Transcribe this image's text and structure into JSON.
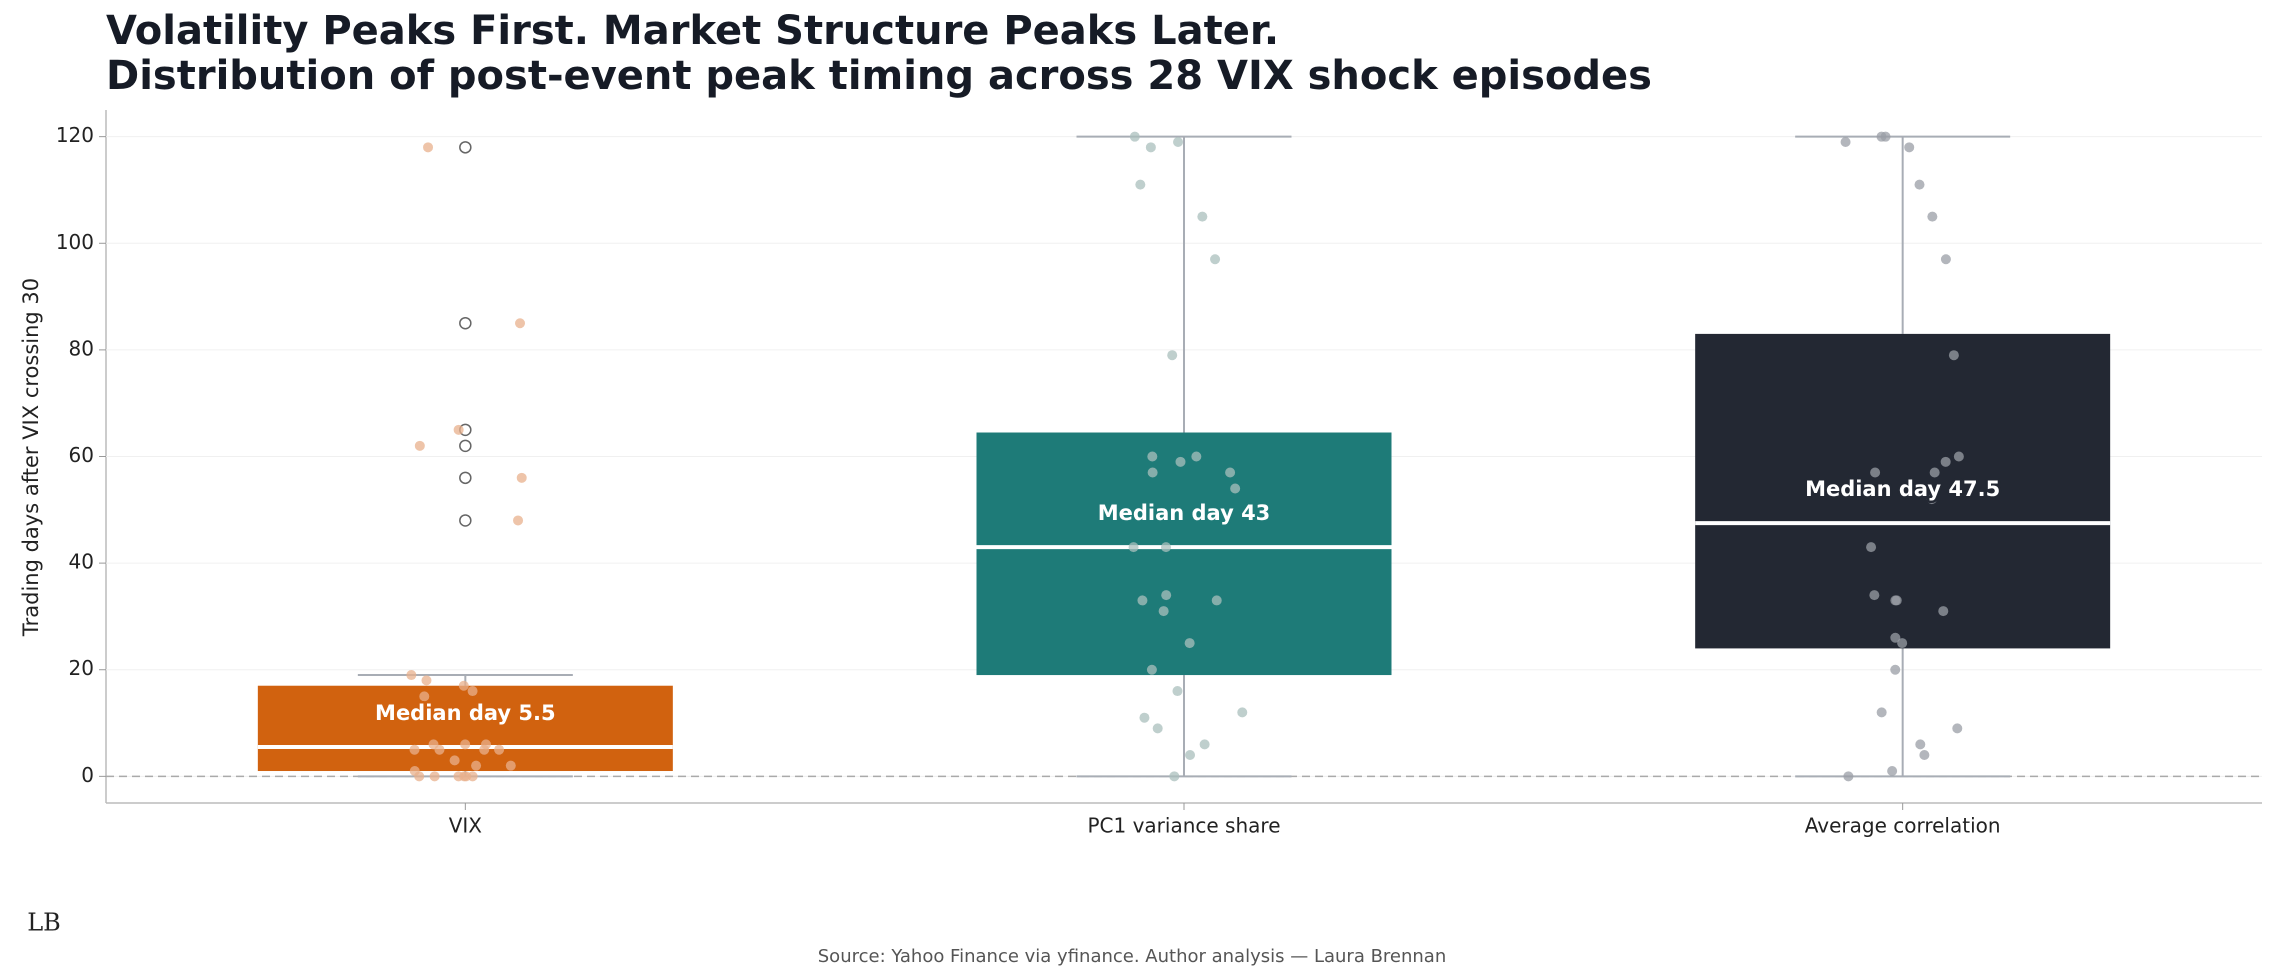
{
  "chart_data": {
    "type": "box",
    "title": "Volatility Peaks First. Market Structure Peaks Later.",
    "subtitle": "Distribution of post-event peak timing across 28 VIX shock episodes",
    "y_label": "Trading days after VIX crossing 30",
    "source": "Source: Yahoo Finance via yfinance. Author analysis — Laura Brennan",
    "logo": "LB",
    "ylim": [
      -5,
      125
    ],
    "yticks": [
      0,
      20,
      40,
      60,
      80,
      100,
      120
    ],
    "grid": true,
    "series": [
      {
        "name": "VIX",
        "color": "#d1620f",
        "point_color": "#e8b08c",
        "q1": 1,
        "median": 5.5,
        "q3": 17,
        "whislo": 0,
        "whishi": 19,
        "median_label": "Median day 5.5",
        "fliers": [
          48,
          56,
          62,
          65,
          85,
          118
        ],
        "points": [
          0,
          0,
          0,
          0,
          0,
          0,
          1,
          2,
          2,
          3,
          5,
          5,
          5,
          5,
          6,
          6,
          6,
          15,
          16,
          17,
          18,
          19,
          48,
          56,
          62,
          65,
          85,
          118
        ]
      },
      {
        "name": "PC1 variance share",
        "color": "#1e7b78",
        "point_color": "#a9bfbc",
        "q1": 19,
        "median": 43,
        "q3": 64.5,
        "whislo": 0,
        "whishi": 120,
        "median_label": "Median day 43",
        "fliers": [],
        "points": [
          0,
          4,
          6,
          9,
          11,
          12,
          16,
          20,
          25,
          31,
          33,
          33,
          34,
          43,
          43,
          54,
          57,
          57,
          59,
          60,
          60,
          79,
          97,
          105,
          111,
          118,
          119,
          120
        ]
      },
      {
        "name": "Average correlation",
        "color": "#232833",
        "point_color": "#9a9ea6",
        "q1": 24,
        "median": 47.5,
        "q3": 83,
        "whislo": 0,
        "whishi": 120,
        "median_label": "Median day 47.5",
        "fliers": [],
        "points": [
          0,
          1,
          4,
          6,
          9,
          12,
          20,
          25,
          26,
          31,
          33,
          33,
          34,
          43,
          52,
          54,
          57,
          57,
          59,
          60,
          79,
          97,
          105,
          111,
          118,
          119,
          120,
          120
        ]
      }
    ]
  }
}
